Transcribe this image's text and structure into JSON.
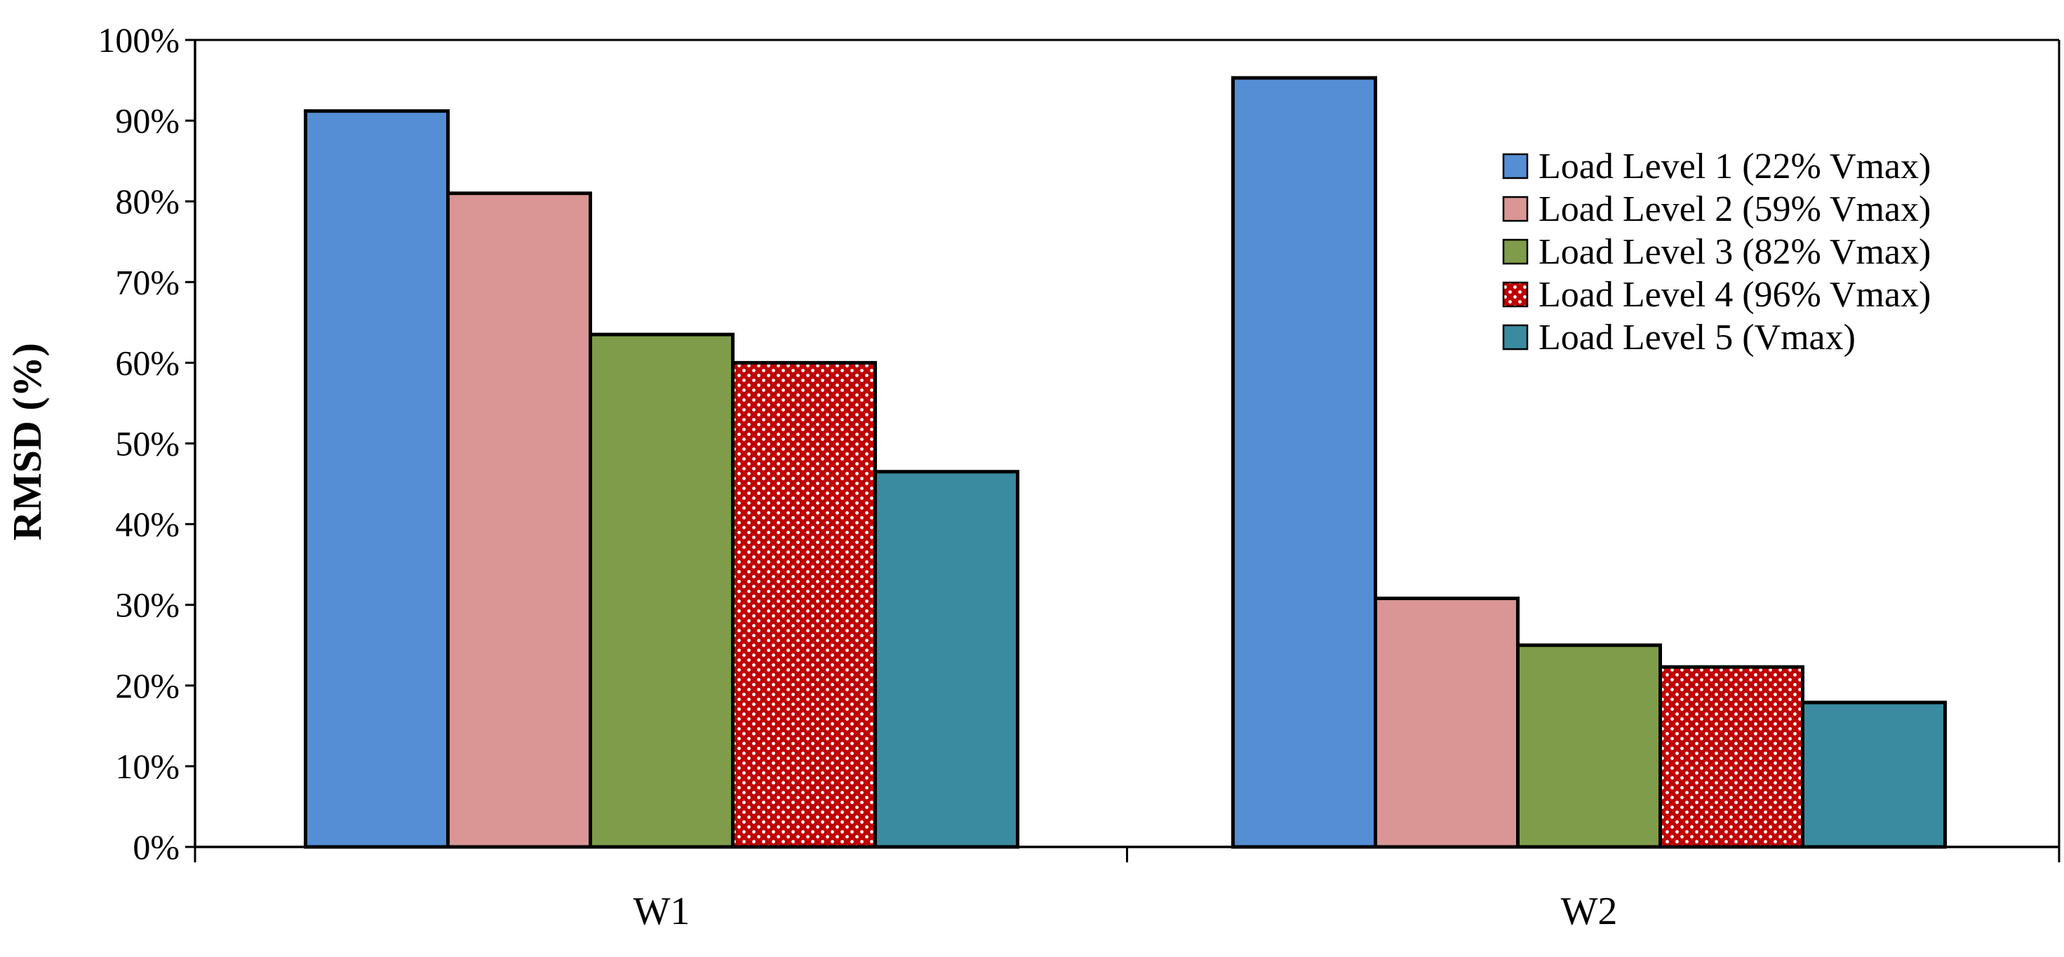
{
  "chart_data": {
    "type": "bar",
    "title": "",
    "xlabel": "",
    "ylabel": "RMSD (%)",
    "ylim": [
      0,
      100
    ],
    "yticks": [
      0,
      10,
      20,
      30,
      40,
      50,
      60,
      70,
      80,
      90,
      100
    ],
    "ytick_labels": [
      "0%",
      "10%",
      "20%",
      "30%",
      "40%",
      "50%",
      "60%",
      "70%",
      "80%",
      "90%",
      "100%"
    ],
    "categories": [
      "W1",
      "W2"
    ],
    "grid": false,
    "legend_position": "right",
    "series": [
      {
        "name": "Load Level 1 (22% Vmax)",
        "values": [
          91.2,
          95.3
        ],
        "color": "#558ED5",
        "pattern": "solid"
      },
      {
        "name": "Load Level 2 (59% Vmax)",
        "values": [
          81.0,
          30.8
        ],
        "color": "#D99694",
        "pattern": "solid"
      },
      {
        "name": "Load Level 3 (82% Vmax)",
        "values": [
          63.5,
          25.0
        ],
        "color": "#7F9C4A",
        "pattern": "solid"
      },
      {
        "name": "Load Level 4 (96% Vmax)",
        "values": [
          60.0,
          22.3
        ],
        "color": "#C00000",
        "pattern": "dots"
      },
      {
        "name": "Load Level 5 (Vmax)",
        "values": [
          46.5,
          17.9
        ],
        "color": "#3A8BA0",
        "pattern": "solid"
      }
    ]
  }
}
